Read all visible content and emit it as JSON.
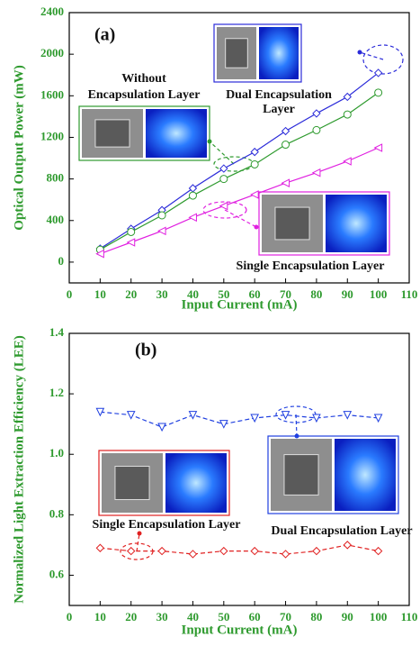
{
  "chart_data": [
    {
      "type": "line",
      "title": "(a)",
      "xlabel": "Input Current (mA)",
      "ylabel": "Optical Output Power (mW)",
      "x": [
        10,
        20,
        30,
        40,
        50,
        60,
        70,
        80,
        90,
        100
      ],
      "xlim": [
        0,
        110
      ],
      "xticks": [
        0,
        10,
        20,
        30,
        40,
        50,
        60,
        70,
        80,
        90,
        100,
        110
      ],
      "ylim": [
        -200,
        2400
      ],
      "yticks": [
        0,
        400,
        800,
        1200,
        1600,
        2000,
        2400
      ],
      "series": [
        {
          "color": "#2b2bd9",
          "marker": "diamond",
          "linestyle": "solid",
          "values": [
            130,
            320,
            500,
            710,
            900,
            1060,
            1260,
            1430,
            1590,
            1820
          ]
        },
        {
          "color": "#2e9a2e",
          "marker": "circle",
          "linestyle": "solid",
          "values": [
            120,
            290,
            450,
            640,
            800,
            940,
            1130,
            1270,
            1420,
            1630
          ]
        },
        {
          "color": "#e020e0",
          "marker": "triangle-left",
          "linestyle": "solid",
          "values": [
            80,
            190,
            300,
            430,
            540,
            650,
            760,
            860,
            970,
            1100
          ]
        }
      ],
      "annotations": [
        "Without",
        "Encapsulation Layer",
        "Dual Encapsulation",
        "Layer",
        "Single Encapsulation Layer"
      ]
    },
    {
      "type": "line",
      "title": "(b)",
      "xlabel": "Input Current (mA)",
      "ylabel": "Normalized Light Extraction Efficiency (LEE)",
      "x": [
        10,
        20,
        30,
        40,
        50,
        60,
        70,
        80,
        90,
        100
      ],
      "xlim": [
        0,
        110
      ],
      "xticks": [
        0,
        10,
        20,
        30,
        40,
        50,
        60,
        70,
        80,
        90,
        100,
        110
      ],
      "ylim": [
        0.5,
        1.4
      ],
      "yticks": [
        0.6,
        0.8,
        {
          "value": 1.0,
          "label": "1.0"
        },
        1.2,
        1.4
      ],
      "series": [
        {
          "color": "#2040e0",
          "marker": "triangle-down",
          "linestyle": "dashed",
          "values": [
            1.14,
            1.13,
            1.09,
            1.13,
            1.1,
            1.12,
            1.13,
            1.12,
            1.13,
            1.12
          ]
        },
        {
          "color": "#e02020",
          "marker": "diamond",
          "linestyle": "dashed",
          "values": [
            0.69,
            0.68,
            0.68,
            0.67,
            0.68,
            0.68,
            0.67,
            0.68,
            0.7,
            0.68
          ]
        }
      ],
      "annotations": [
        "Single Encapsulation Layer",
        "Dual Encapsulation Layer"
      ]
    }
  ]
}
